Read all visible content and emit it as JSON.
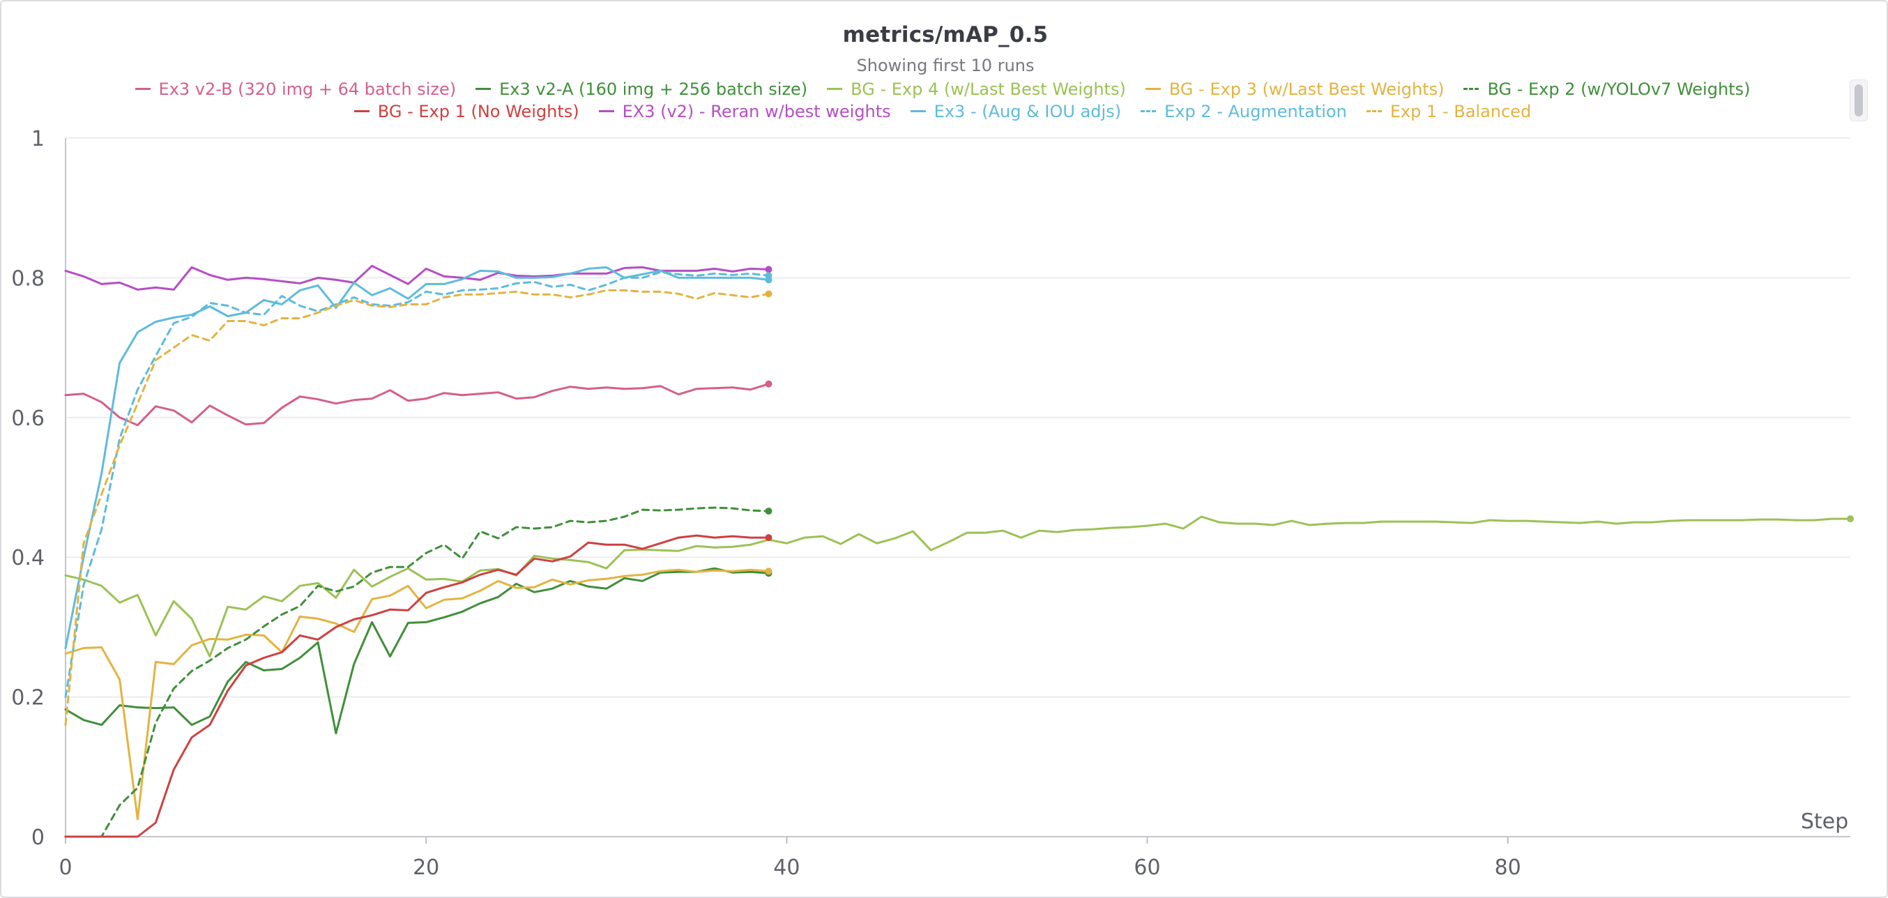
{
  "chart_data": {
    "type": "line",
    "title": "metrics/mAP_0.5",
    "subtitle": "Showing first 10 runs",
    "xlabel": "Step",
    "ylabel": "",
    "xlim": [
      0,
      99
    ],
    "ylim": [
      0,
      1
    ],
    "x_ticks": [
      "0",
      "20",
      "40",
      "60",
      "80"
    ],
    "y_ticks": [
      "0",
      "0.2",
      "0.4",
      "0.6",
      "0.8",
      "1"
    ],
    "grid": true,
    "legend_position": "top",
    "series": [
      {
        "name": "Ex3 v2-B (320 img + 64 batch size)",
        "color": "#d45f8b",
        "dash": false,
        "x": [
          0,
          1,
          2,
          3,
          4,
          5,
          6,
          7,
          8,
          9,
          10,
          11,
          12,
          13,
          14,
          15,
          16,
          17,
          18,
          19,
          20,
          21,
          22,
          23,
          24,
          25,
          26,
          27,
          28,
          29,
          30,
          31,
          32,
          33,
          34,
          35,
          36,
          37,
          38,
          39
        ],
        "y": [
          0.632,
          0.634,
          0.622,
          0.6,
          0.589,
          0.616,
          0.61,
          0.593,
          0.617,
          0.603,
          0.59,
          0.592,
          0.614,
          0.63,
          0.626,
          0.62,
          0.625,
          0.627,
          0.639,
          0.624,
          0.627,
          0.635,
          0.632,
          0.634,
          0.636,
          0.627,
          0.629,
          0.638,
          0.644,
          0.641,
          0.643,
          0.641,
          0.642,
          0.645,
          0.633,
          0.641,
          0.642,
          0.643,
          0.64,
          0.648
        ]
      },
      {
        "name": "Ex3 v2-A (160 img + 256 batch size)",
        "color": "#3f8f3a",
        "dash": false,
        "x": [
          0,
          1,
          2,
          3,
          4,
          5,
          6,
          7,
          8,
          9,
          10,
          11,
          12,
          13,
          14,
          15,
          16,
          17,
          18,
          19,
          20,
          21,
          22,
          23,
          24,
          25,
          26,
          27,
          28,
          29,
          30,
          31,
          32,
          33,
          34,
          35,
          36,
          37,
          38,
          39
        ],
        "y": [
          0.182,
          0.167,
          0.16,
          0.188,
          0.185,
          0.184,
          0.185,
          0.16,
          0.172,
          0.222,
          0.25,
          0.238,
          0.24,
          0.256,
          0.278,
          0.148,
          0.247,
          0.307,
          0.258,
          0.306,
          0.307,
          0.314,
          0.322,
          0.334,
          0.343,
          0.362,
          0.35,
          0.355,
          0.366,
          0.358,
          0.355,
          0.37,
          0.366,
          0.378,
          0.379,
          0.379,
          0.384,
          0.378,
          0.379,
          0.377
        ]
      },
      {
        "name": "BG - Exp 4 (w/Last Best Weights)",
        "color": "#9cc155",
        "dash": false,
        "x": [
          0,
          1,
          2,
          3,
          4,
          5,
          6,
          7,
          8,
          9,
          10,
          11,
          12,
          13,
          14,
          15,
          16,
          17,
          18,
          19,
          20,
          21,
          22,
          23,
          24,
          25,
          26,
          27,
          28,
          29,
          30,
          31,
          32,
          33,
          34,
          35,
          36,
          37,
          38,
          39,
          40,
          41,
          42,
          43,
          44,
          45,
          46,
          47,
          48,
          49,
          50,
          51,
          52,
          53,
          54,
          55,
          56,
          57,
          58,
          59,
          60,
          61,
          62,
          63,
          64,
          65,
          66,
          67,
          68,
          69,
          70,
          71,
          72,
          73,
          74,
          75,
          76,
          77,
          78,
          79,
          80,
          81,
          82,
          83,
          84,
          85,
          86,
          87,
          88,
          89,
          90,
          91,
          92,
          93,
          94,
          95,
          96,
          97,
          98,
          99
        ],
        "y": [
          0.374,
          0.368,
          0.359,
          0.335,
          0.346,
          0.288,
          0.337,
          0.312,
          0.258,
          0.329,
          0.325,
          0.344,
          0.337,
          0.359,
          0.363,
          0.342,
          0.382,
          0.358,
          0.372,
          0.384,
          0.368,
          0.369,
          0.365,
          0.381,
          0.383,
          0.374,
          0.402,
          0.398,
          0.396,
          0.393,
          0.384,
          0.41,
          0.411,
          0.41,
          0.409,
          0.416,
          0.414,
          0.415,
          0.418,
          0.425,
          0.42,
          0.428,
          0.43,
          0.419,
          0.433,
          0.42,
          0.427,
          0.437,
          0.41,
          0.422,
          0.435,
          0.435,
          0.438,
          0.428,
          0.438,
          0.436,
          0.439,
          0.44,
          0.442,
          0.443,
          0.445,
          0.448,
          0.441,
          0.458,
          0.45,
          0.448,
          0.448,
          0.446,
          0.452,
          0.446,
          0.448,
          0.449,
          0.449,
          0.451,
          0.451,
          0.451,
          0.451,
          0.45,
          0.449,
          0.453,
          0.452,
          0.452,
          0.451,
          0.45,
          0.449,
          0.451,
          0.448,
          0.45,
          0.45,
          0.452,
          0.453,
          0.453,
          0.453,
          0.453,
          0.454,
          0.454,
          0.453,
          0.453,
          0.455,
          0.455
        ]
      },
      {
        "name": "BG - Exp 3 (w/Last Best Weights)",
        "color": "#e3b341",
        "dash": false,
        "x": [
          0,
          1,
          2,
          3,
          4,
          5,
          6,
          7,
          8,
          9,
          10,
          11,
          12,
          13,
          14,
          15,
          16,
          17,
          18,
          19,
          20,
          21,
          22,
          23,
          24,
          25,
          26,
          27,
          28,
          29,
          30,
          31,
          32,
          33,
          34,
          35,
          36,
          37,
          38,
          39
        ],
        "y": [
          0.262,
          0.27,
          0.271,
          0.225,
          0.025,
          0.25,
          0.247,
          0.274,
          0.283,
          0.282,
          0.289,
          0.288,
          0.264,
          0.315,
          0.312,
          0.305,
          0.293,
          0.34,
          0.345,
          0.359,
          0.327,
          0.339,
          0.341,
          0.352,
          0.366,
          0.356,
          0.357,
          0.368,
          0.361,
          0.367,
          0.369,
          0.373,
          0.375,
          0.38,
          0.382,
          0.379,
          0.381,
          0.38,
          0.382,
          0.38
        ]
      },
      {
        "name": "BG - Exp 2 (w/YOLOv7 Weights)",
        "color": "#3f8f3a",
        "dash": true,
        "x": [
          0,
          1,
          2,
          3,
          4,
          5,
          6,
          7,
          8,
          9,
          10,
          11,
          12,
          13,
          14,
          15,
          16,
          17,
          18,
          19,
          20,
          21,
          22,
          23,
          24,
          25,
          26,
          27,
          28,
          29,
          30,
          31,
          32,
          33,
          34,
          35,
          36,
          37,
          38,
          39
        ],
        "y": [
          0.0,
          0.0,
          0.0,
          0.045,
          0.07,
          0.163,
          0.212,
          0.237,
          0.252,
          0.27,
          0.282,
          0.301,
          0.318,
          0.33,
          0.359,
          0.351,
          0.358,
          0.378,
          0.386,
          0.386,
          0.406,
          0.418,
          0.398,
          0.437,
          0.427,
          0.443,
          0.441,
          0.443,
          0.452,
          0.45,
          0.452,
          0.458,
          0.468,
          0.467,
          0.468,
          0.47,
          0.471,
          0.47,
          0.467,
          0.466
        ]
      },
      {
        "name": "BG - Exp 1 (No Weights)",
        "color": "#cf4040",
        "dash": false,
        "x": [
          0,
          1,
          2,
          3,
          4,
          5,
          6,
          7,
          8,
          9,
          10,
          11,
          12,
          13,
          14,
          15,
          16,
          17,
          18,
          19,
          20,
          21,
          22,
          23,
          24,
          25,
          26,
          27,
          28,
          29,
          30,
          31,
          32,
          33,
          34,
          35,
          36,
          37,
          38,
          39
        ],
        "y": [
          0.0,
          0.0,
          0.0,
          0.0,
          0.0,
          0.02,
          0.096,
          0.142,
          0.16,
          0.209,
          0.245,
          0.256,
          0.264,
          0.288,
          0.282,
          0.3,
          0.311,
          0.317,
          0.325,
          0.324,
          0.349,
          0.357,
          0.364,
          0.375,
          0.382,
          0.375,
          0.398,
          0.394,
          0.401,
          0.421,
          0.418,
          0.418,
          0.412,
          0.42,
          0.428,
          0.431,
          0.428,
          0.43,
          0.428,
          0.428
        ]
      },
      {
        "name": "EX3 (v2) - Reran w/best weights",
        "color": "#b54ec4",
        "dash": false,
        "x": [
          0,
          1,
          2,
          3,
          4,
          5,
          6,
          7,
          8,
          9,
          10,
          11,
          12,
          13,
          14,
          15,
          16,
          17,
          18,
          19,
          20,
          21,
          22,
          23,
          24,
          25,
          26,
          27,
          28,
          29,
          30,
          31,
          32,
          33,
          34,
          35,
          36,
          37,
          38,
          39
        ],
        "y": [
          0.81,
          0.802,
          0.791,
          0.793,
          0.783,
          0.786,
          0.783,
          0.815,
          0.804,
          0.797,
          0.8,
          0.798,
          0.795,
          0.792,
          0.8,
          0.797,
          0.793,
          0.817,
          0.804,
          0.791,
          0.813,
          0.802,
          0.8,
          0.797,
          0.807,
          0.803,
          0.802,
          0.803,
          0.806,
          0.806,
          0.806,
          0.814,
          0.815,
          0.81,
          0.81,
          0.81,
          0.813,
          0.809,
          0.813,
          0.812
        ]
      },
      {
        "name": "Ex3 - (Aug & IOU adjs)",
        "color": "#5ebbdb",
        "dash": false,
        "x": [
          0,
          1,
          2,
          3,
          4,
          5,
          6,
          7,
          8,
          9,
          10,
          11,
          12,
          13,
          14,
          15,
          16,
          17,
          18,
          19,
          20,
          21,
          22,
          23,
          24,
          25,
          26,
          27,
          28,
          29,
          30,
          31,
          32,
          33,
          34,
          35,
          36,
          37,
          38,
          39
        ],
        "y": [
          0.27,
          0.4,
          0.52,
          0.678,
          0.722,
          0.737,
          0.743,
          0.747,
          0.759,
          0.745,
          0.75,
          0.768,
          0.762,
          0.782,
          0.789,
          0.757,
          0.793,
          0.775,
          0.785,
          0.77,
          0.791,
          0.791,
          0.798,
          0.81,
          0.809,
          0.8,
          0.8,
          0.801,
          0.806,
          0.813,
          0.815,
          0.8,
          0.805,
          0.81,
          0.8,
          0.8,
          0.8,
          0.8,
          0.8,
          0.797
        ]
      },
      {
        "name": "Exp 2 - Augmentation",
        "color": "#5ebbdb",
        "dash": true,
        "x": [
          0,
          1,
          2,
          3,
          4,
          5,
          6,
          7,
          8,
          9,
          10,
          11,
          12,
          13,
          14,
          15,
          16,
          17,
          18,
          19,
          20,
          21,
          22,
          23,
          24,
          25,
          26,
          27,
          28,
          29,
          30,
          31,
          32,
          33,
          34,
          35,
          36,
          37,
          38,
          39
        ],
        "y": [
          0.2,
          0.36,
          0.44,
          0.57,
          0.64,
          0.688,
          0.735,
          0.744,
          0.764,
          0.76,
          0.75,
          0.747,
          0.774,
          0.76,
          0.752,
          0.762,
          0.772,
          0.762,
          0.76,
          0.765,
          0.78,
          0.776,
          0.782,
          0.783,
          0.785,
          0.792,
          0.794,
          0.787,
          0.79,
          0.782,
          0.79,
          0.8,
          0.8,
          0.808,
          0.805,
          0.803,
          0.806,
          0.804,
          0.806,
          0.803
        ]
      },
      {
        "name": "Exp 1 - Balanced",
        "color": "#e3b341",
        "dash": true,
        "x": [
          0,
          1,
          2,
          3,
          4,
          5,
          6,
          7,
          8,
          9,
          10,
          11,
          12,
          13,
          14,
          15,
          16,
          17,
          18,
          19,
          20,
          21,
          22,
          23,
          24,
          25,
          26,
          27,
          28,
          29,
          30,
          31,
          32,
          33,
          34,
          35,
          36,
          37,
          38,
          39
        ],
        "y": [
          0.16,
          0.42,
          0.49,
          0.56,
          0.62,
          0.682,
          0.7,
          0.718,
          0.71,
          0.738,
          0.738,
          0.732,
          0.742,
          0.742,
          0.75,
          0.76,
          0.768,
          0.76,
          0.758,
          0.762,
          0.762,
          0.772,
          0.776,
          0.776,
          0.778,
          0.78,
          0.776,
          0.776,
          0.772,
          0.776,
          0.782,
          0.782,
          0.78,
          0.78,
          0.777,
          0.77,
          0.778,
          0.775,
          0.772,
          0.777
        ]
      }
    ]
  }
}
